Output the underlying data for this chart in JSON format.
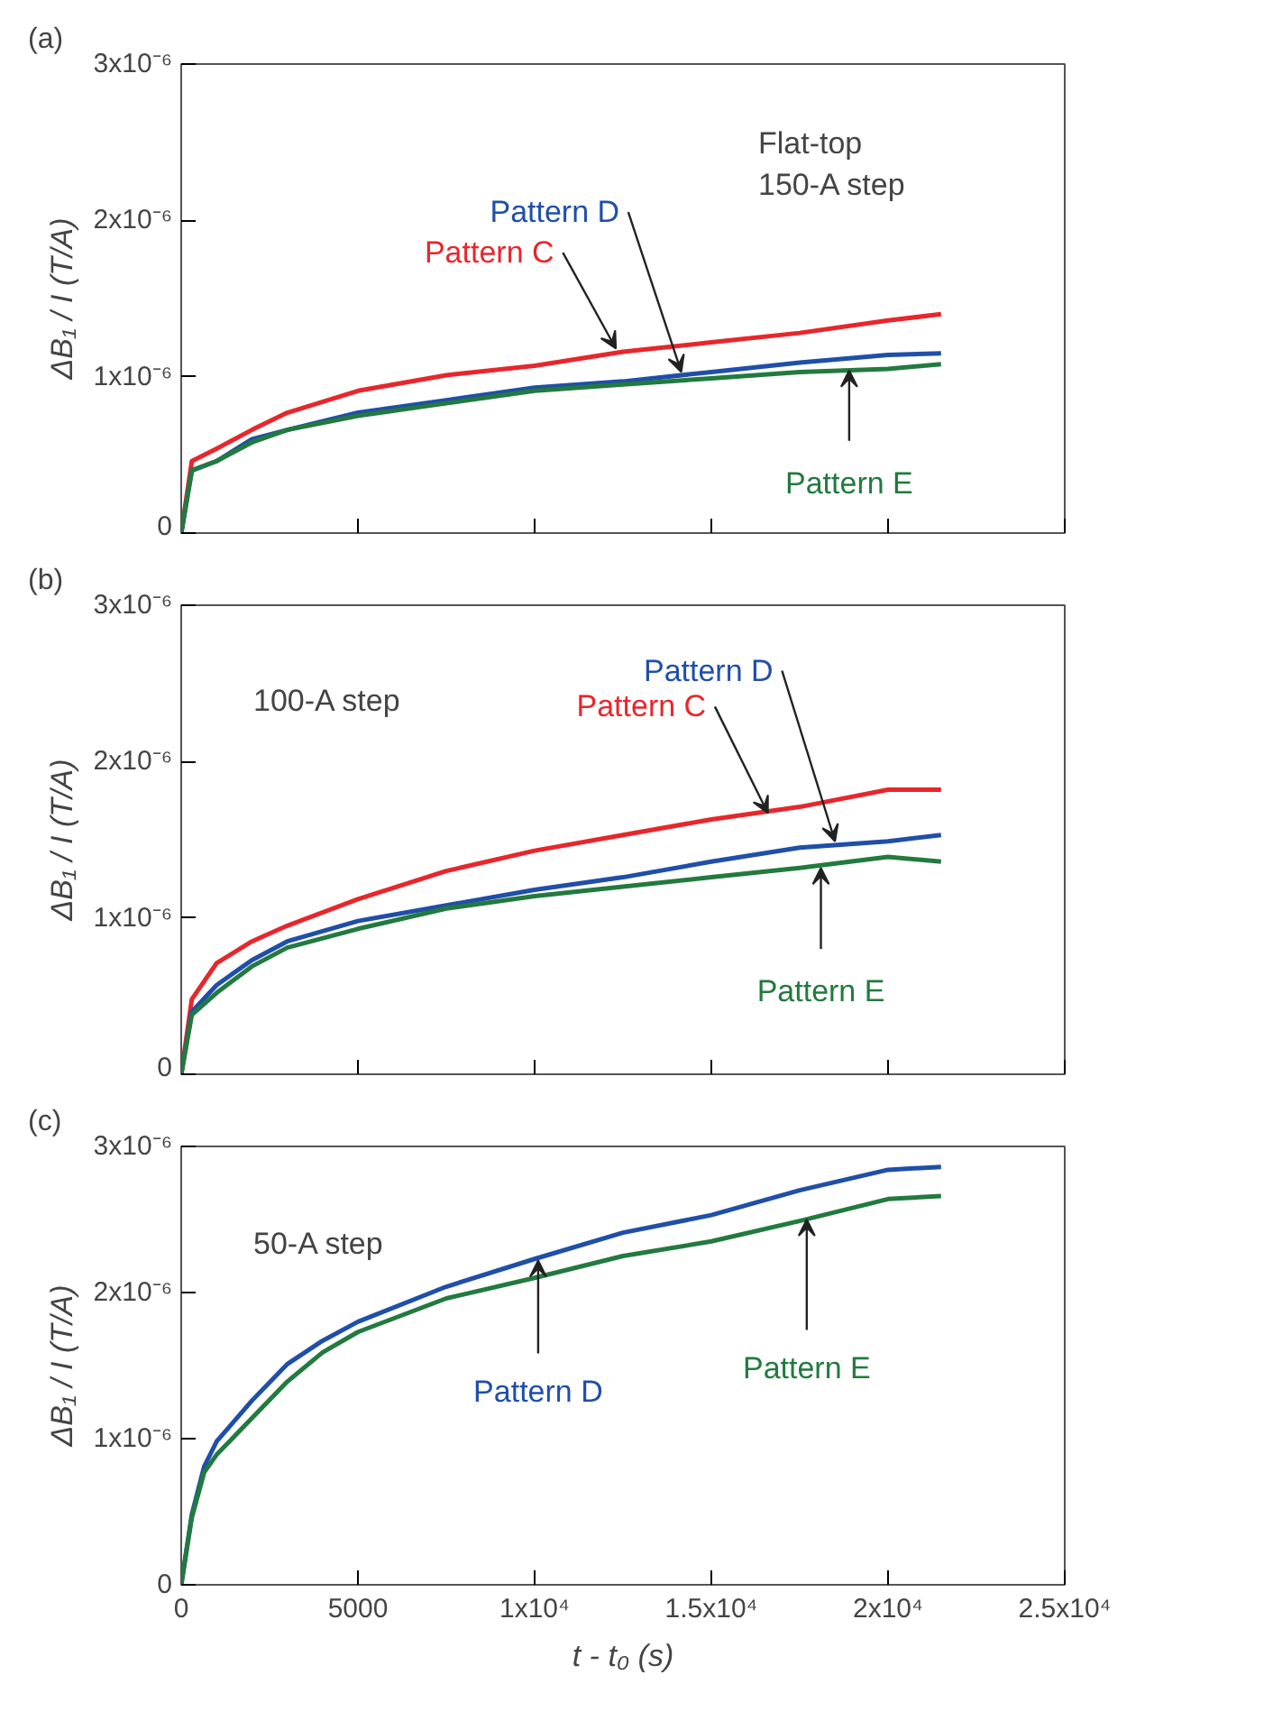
{
  "chart_data": [
    {
      "type": "line",
      "title": "(a)",
      "ylabel": "ΔB₁ / I (T/A)",
      "tick_labels": "y",
      "xlim": [
        0,
        25000
      ],
      "xticks": [
        0,
        5000,
        10000,
        15000,
        20000,
        25000
      ],
      "ylim": [
        0,
        3e-06
      ],
      "yticks": [
        0,
        {
          "value": 1e-06,
          "label": "1x10⁻⁶"
        },
        {
          "value": 2e-06,
          "label": "2x10⁻⁶"
        },
        {
          "value": 3e-06,
          "label": "3x10⁻⁶"
        }
      ],
      "x": [
        0,
        300,
        1000,
        2000,
        3000,
        5000,
        7500,
        10000,
        12500,
        15000,
        17500,
        20000,
        21500
      ],
      "series": [
        {
          "color": "#e8262b",
          "values": [
            0,
            4.6e-07,
            5.4e-07,
            6.6e-07,
            7.7e-07,
            9.1e-07,
            1.01e-06,
            1.07e-06,
            1.16e-06,
            1.22e-06,
            1.28e-06,
            1.36e-06,
            1.4e-06
          ]
        },
        {
          "color": "#1f4fa8",
          "values": [
            0,
            4e-07,
            4.6e-07,
            6e-07,
            6.6e-07,
            7.7e-07,
            8.5e-07,
            9.3e-07,
            9.7e-07,
            1.03e-06,
            1.09e-06,
            1.14e-06,
            1.15e-06
          ]
        },
        {
          "color": "#227a3e",
          "values": [
            0,
            4e-07,
            4.6e-07,
            5.8e-07,
            6.6e-07,
            7.5e-07,
            8.3e-07,
            9.1e-07,
            9.5e-07,
            9.9e-07,
            1.03e-06,
            1.05e-06,
            1.08e-06
          ]
        }
      ],
      "annotations": [
        {
          "text": "Pattern C",
          "x": 12300,
          "y": 1.18e-06
        },
        {
          "text": "Pattern D",
          "x": 14150,
          "y": 1.03e-06
        },
        {
          "text": "Pattern E",
          "x": 18900,
          "y": 1.04e-06
        },
        "Flat-top\n150-A step"
      ]
    },
    {
      "type": "line",
      "title": "(b)",
      "ylabel": "ΔB₁ / I (T/A)",
      "tick_labels": "y",
      "xlim": [
        0,
        25000
      ],
      "xticks": [
        0,
        5000,
        10000,
        15000,
        20000,
        25000
      ],
      "ylim": [
        0,
        3e-06
      ],
      "yticks": [
        0,
        {
          "value": 1e-06,
          "label": "1x10⁻⁶"
        },
        {
          "value": 2e-06,
          "label": "2x10⁻⁶"
        },
        {
          "value": 3e-06,
          "label": "3x10⁻⁶"
        }
      ],
      "x": [
        0,
        300,
        1000,
        2000,
        3000,
        5000,
        7500,
        10000,
        12500,
        15000,
        17500,
        20000,
        21500
      ],
      "series": [
        {
          "color": "#e8262b",
          "values": [
            0,
            4.8e-07,
            7.1e-07,
            8.5e-07,
            9.5e-07,
            1.12e-06,
            1.3e-06,
            1.43e-06,
            1.53e-06,
            1.63e-06,
            1.71e-06,
            1.82e-06,
            1.82e-06
          ]
        },
        {
          "color": "#1f4fa8",
          "values": [
            0,
            4e-07,
            5.7e-07,
            7.3e-07,
            8.5e-07,
            9.8e-07,
            1.08e-06,
            1.18e-06,
            1.26e-06,
            1.36e-06,
            1.45e-06,
            1.49e-06,
            1.53e-06
          ]
        },
        {
          "color": "#227a3e",
          "values": [
            0,
            3.8e-07,
            5.2e-07,
            6.9e-07,
            8.1e-07,
            9.3e-07,
            1.06e-06,
            1.14e-06,
            1.2e-06,
            1.26e-06,
            1.32e-06,
            1.39e-06,
            1.36e-06
          ]
        }
      ],
      "annotations": [
        {
          "text": "Pattern C",
          "x": 16600,
          "y": 1.67e-06
        },
        {
          "text": "Pattern D",
          "x": 18500,
          "y": 1.49e-06
        },
        {
          "text": "Pattern E",
          "x": 18100,
          "y": 1.32e-06
        },
        "100-A step"
      ]
    },
    {
      "type": "line",
      "title": "(c)",
      "xlabel": "t - t₀ (s)",
      "ylabel": "ΔB₁ / I (T/A)",
      "xlim": [
        0,
        25000
      ],
      "xticks": [
        0,
        5000,
        {
          "value": 10000,
          "label": "1x10⁴"
        },
        {
          "value": 15000,
          "label": "1.5x10⁴"
        },
        {
          "value": 20000,
          "label": "2x10⁴"
        },
        {
          "value": 25000,
          "label": "2.5x10⁴"
        }
      ],
      "ylim": [
        0,
        3e-06
      ],
      "yticks": [
        0,
        {
          "value": 1e-06,
          "label": "1x10⁻⁶"
        },
        {
          "value": 2e-06,
          "label": "2x10⁻⁶"
        },
        {
          "value": 3e-06,
          "label": "3x10⁻⁶"
        }
      ],
      "x": [
        0,
        300,
        650,
        1000,
        2000,
        3000,
        4000,
        5000,
        7500,
        10000,
        12500,
        15000,
        17500,
        20000,
        21500
      ],
      "series": [
        {
          "color": "#1f4fa8",
          "values": [
            0,
            4.8e-07,
            8.1e-07,
            9.8e-07,
            1.26e-06,
            1.51e-06,
            1.67e-06,
            1.8e-06,
            2.04e-06,
            2.23e-06,
            2.41e-06,
            2.53e-06,
            2.7e-06,
            2.84e-06,
            2.86e-06
          ]
        },
        {
          "color": "#227a3e",
          "values": [
            0,
            4.6e-07,
            7.7e-07,
            8.9e-07,
            1.14e-06,
            1.39e-06,
            1.59e-06,
            1.73e-06,
            1.96e-06,
            2.1e-06,
            2.25e-06,
            2.35e-06,
            2.49e-06,
            2.64e-06,
            2.66e-06
          ]
        }
      ],
      "annotations": [
        {
          "text": "Pattern D",
          "x": 10100,
          "y": 2.22e-06
        },
        {
          "text": "Pattern E",
          "x": 17700,
          "y": 2.5e-06
        },
        "50-A step"
      ]
    }
  ]
}
